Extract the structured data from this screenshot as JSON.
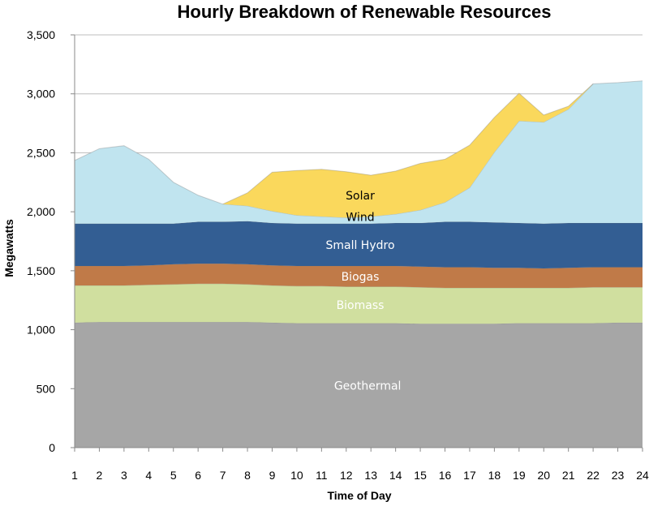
{
  "chart_data": {
    "type": "area",
    "stacked": true,
    "title": "Hourly Breakdown of Renewable Resources",
    "xlabel": "Time of Day",
    "ylabel": "Megawatts",
    "x": [
      1,
      2,
      3,
      4,
      5,
      6,
      7,
      8,
      9,
      10,
      11,
      12,
      13,
      14,
      15,
      16,
      17,
      18,
      19,
      20,
      21,
      22,
      23,
      24
    ],
    "x_tick_labels": [
      "1",
      "2",
      "3",
      "4",
      "5",
      "6",
      "7",
      "8",
      "9",
      "10",
      "11",
      "12",
      "13",
      "14",
      "15",
      "16",
      "17",
      "18",
      "19",
      "20",
      "21",
      "22",
      "23",
      "24"
    ],
    "ylim": [
      0,
      3500
    ],
    "y_ticks": [
      0,
      500,
      1000,
      1500,
      2000,
      2500,
      3000,
      3500
    ],
    "y_tick_labels": [
      "0",
      "500",
      "1,000",
      "1,500",
      "2,000",
      "2,500",
      "3,000",
      "3,500"
    ],
    "grid": "horizontal",
    "legend": "none (labels drawn inside areas)",
    "series": [
      {
        "name": "Geothermal",
        "color": "#a6a6a6",
        "label_color": "#ffffff",
        "values": [
          1060,
          1065,
          1065,
          1065,
          1065,
          1065,
          1065,
          1065,
          1060,
          1055,
          1055,
          1055,
          1055,
          1055,
          1050,
          1050,
          1050,
          1050,
          1055,
          1055,
          1055,
          1055,
          1060,
          1060
        ]
      },
      {
        "name": "Biomass",
        "color": "#d0df9f",
        "label_color": "#ffffff",
        "values": [
          315,
          310,
          310,
          315,
          320,
          325,
          325,
          320,
          315,
          315,
          315,
          310,
          310,
          310,
          310,
          305,
          305,
          305,
          300,
          300,
          300,
          305,
          300,
          300
        ]
      },
      {
        "name": "Biogas",
        "color": "#c07a48",
        "label_color": "#ffffff",
        "values": [
          165,
          165,
          165,
          165,
          170,
          170,
          170,
          170,
          170,
          170,
          170,
          175,
          175,
          175,
          175,
          175,
          175,
          170,
          170,
          165,
          170,
          170,
          170,
          170
        ]
      },
      {
        "name": "Small Hydro",
        "color": "#335e93",
        "label_color": "#ffffff",
        "values": [
          360,
          360,
          360,
          355,
          345,
          355,
          355,
          365,
          360,
          360,
          360,
          360,
          360,
          365,
          370,
          385,
          385,
          385,
          380,
          380,
          380,
          375,
          375,
          375
        ]
      },
      {
        "name": "Wind",
        "color": "#c0e4ef",
        "label_color": "#000000",
        "values": [
          535,
          635,
          660,
          545,
          350,
          225,
          150,
          130,
          100,
          70,
          60,
          50,
          60,
          75,
          110,
          165,
          290,
          595,
          865,
          860,
          965,
          1180,
          1190,
          1205
        ]
      },
      {
        "name": "Solar",
        "color": "#fad85c",
        "label_color": "#000000",
        "values": [
          0,
          0,
          0,
          0,
          0,
          0,
          0,
          110,
          330,
          380,
          400,
          390,
          350,
          365,
          395,
          365,
          360,
          295,
          235,
          60,
          25,
          0,
          0,
          0
        ]
      }
    ]
  }
}
